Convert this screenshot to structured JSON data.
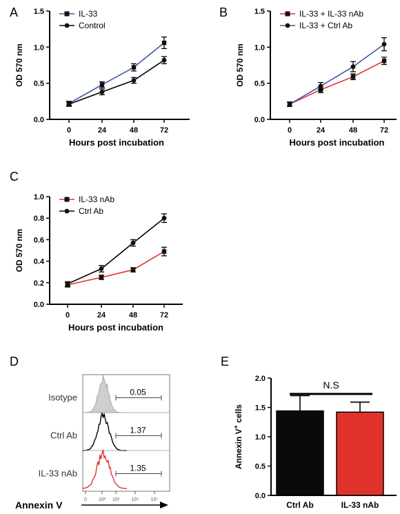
{
  "chart_data": [
    {
      "panel": "A",
      "type": "line",
      "xlabel": "Hours post incubation",
      "ylabel": "OD 570 nm",
      "x": [
        0,
        24,
        48,
        72
      ],
      "ylim": [
        0,
        1.5
      ],
      "yticks": [
        "0.0",
        "0.5",
        "1.0",
        "1.5"
      ],
      "legend_position": "top-left",
      "series": [
        {
          "name": "IL-33",
          "color": "#3b54a5",
          "marker": "square",
          "values": [
            0.22,
            0.48,
            0.72,
            1.06
          ],
          "errors": [
            0.03,
            0.04,
            0.05,
            0.08
          ]
        },
        {
          "name": "Control",
          "color": "#000000",
          "marker": "circle",
          "values": [
            0.21,
            0.38,
            0.54,
            0.82
          ],
          "errors": [
            0.03,
            0.04,
            0.04,
            0.05
          ]
        }
      ]
    },
    {
      "panel": "B",
      "type": "line",
      "xlabel": "Hours post incubation",
      "ylabel": "OD 570 nm",
      "x": [
        0,
        24,
        48,
        72
      ],
      "ylim": [
        0,
        1.5
      ],
      "yticks": [
        "0.0",
        "0.5",
        "1.0",
        "1.5"
      ],
      "legend_position": "top-left",
      "series": [
        {
          "name": "IL-33 + IL-33 nAb",
          "color": "#e0322a",
          "marker": "square",
          "values": [
            0.21,
            0.41,
            0.59,
            0.81
          ],
          "errors": [
            0.03,
            0.04,
            0.04,
            0.05
          ]
        },
        {
          "name": "IL-33 + Ctrl Ab",
          "color": "#3b54a5",
          "marker": "circle",
          "values": [
            0.21,
            0.46,
            0.73,
            1.04
          ],
          "errors": [
            0.03,
            0.05,
            0.07,
            0.09
          ]
        }
      ]
    },
    {
      "panel": "C",
      "type": "line",
      "xlabel": "Hours post incubation",
      "ylabel": "OD 570 nm",
      "x": [
        0,
        24,
        48,
        72
      ],
      "ylim": [
        0,
        1.0
      ],
      "yticks": [
        "0.0",
        "0.2",
        "0.4",
        "0.6",
        "0.8",
        "1.0"
      ],
      "legend_position": "top-left",
      "series": [
        {
          "name": "IL-33 nAb",
          "color": "#e0322a",
          "marker": "square",
          "values": [
            0.18,
            0.25,
            0.32,
            0.49
          ],
          "errors": [
            0.02,
            0.02,
            0.02,
            0.04
          ]
        },
        {
          "name": "Ctrl Ab",
          "color": "#000000",
          "marker": "circle",
          "values": [
            0.19,
            0.33,
            0.57,
            0.8
          ],
          "errors": [
            0.02,
            0.03,
            0.03,
            0.04
          ]
        }
      ]
    },
    {
      "panel": "D",
      "type": "histogram",
      "xlabel": "Annexin V",
      "tick_labels": [
        "0",
        "10²",
        "10³",
        "10⁴",
        "10⁵"
      ],
      "rows": [
        {
          "label": "Isotype",
          "percent": "0.05",
          "color": "#aaaaaa"
        },
        {
          "label": "Ctrl Ab",
          "percent": "1.37",
          "color": "#000000"
        },
        {
          "label": "IL-33 nAb",
          "percent": "1.35",
          "color": "#e0322a"
        }
      ]
    },
    {
      "panel": "E",
      "type": "bar",
      "ylabel": "Annexin V",
      "ylabel_sup": "+",
      "ylabel_suffix": " cells",
      "categories": [
        "Ctrl Ab",
        "IL-33 nAb"
      ],
      "values": [
        1.44,
        1.42
      ],
      "errors": [
        0.26,
        0.17
      ],
      "colors": [
        "#0a0a0a",
        "#e0322a"
      ],
      "ylim": [
        0,
        2.0
      ],
      "yticks": [
        "0.0",
        "0.5",
        "1.0",
        "1.5",
        "2.0"
      ],
      "annotation": "N.S"
    }
  ],
  "panels": {
    "A": {
      "letter": "A"
    },
    "B": {
      "letter": "B"
    },
    "C": {
      "letter": "C"
    },
    "D": {
      "letter": "D"
    },
    "E": {
      "letter": "E"
    }
  }
}
